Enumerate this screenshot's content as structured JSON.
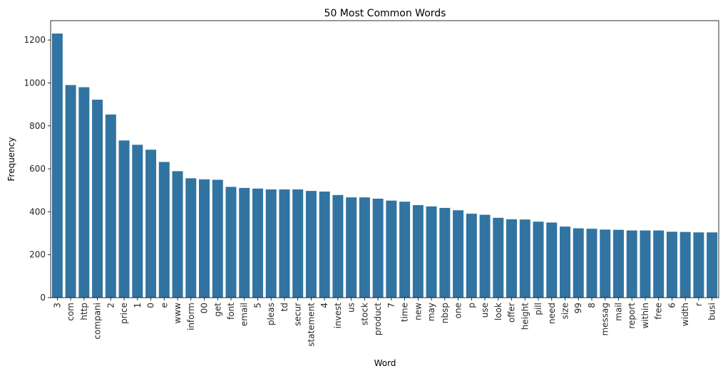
{
  "chart_data": {
    "type": "bar",
    "title": "50 Most Common Words",
    "xlabel": "Word",
    "ylabel": "Frequency",
    "ylim": [
      0,
      1290
    ],
    "yticks": [
      0,
      200,
      400,
      600,
      800,
      1000,
      1200
    ],
    "grid": false,
    "bar_color": "#3274a1",
    "categories": [
      "3",
      "com",
      "http",
      "compani",
      "2",
      "price",
      "1",
      "0",
      "e",
      "www",
      "inform",
      "00",
      "get",
      "font",
      "email",
      "5",
      "pleas",
      "td",
      "secur",
      "statement",
      "4",
      "invest",
      "us",
      "stock",
      "product",
      "7",
      "time",
      "new",
      "may",
      "nbsp",
      "one",
      "p",
      "use",
      "look",
      "offer",
      "height",
      "pill",
      "need",
      "size",
      "99",
      "8",
      "messag",
      "mail",
      "report",
      "within",
      "free",
      "6",
      "width",
      "r",
      "busi"
    ],
    "values": [
      1230,
      990,
      980,
      922,
      853,
      732,
      712,
      689,
      632,
      589,
      556,
      551,
      549,
      516,
      511,
      508,
      504,
      504,
      504,
      497,
      494,
      478,
      467,
      467,
      461,
      452,
      447,
      431,
      425,
      418,
      407,
      391,
      386,
      372,
      365,
      364,
      354,
      350,
      331,
      323,
      321,
      317,
      316,
      313,
      313,
      313,
      307,
      306,
      304,
      304
    ]
  }
}
